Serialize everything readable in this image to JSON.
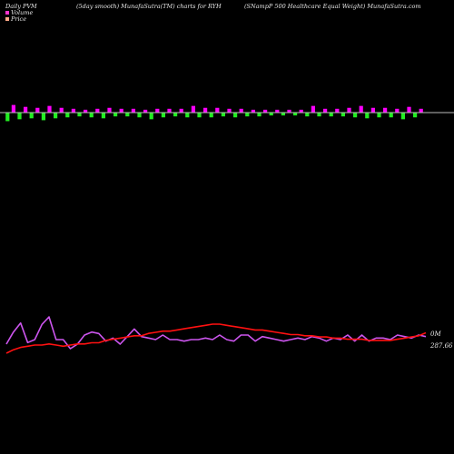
{
  "header": {
    "left": "Daily PVM",
    "middle": "(5day smooth) MunafaSutra(TM) charts for RYH",
    "right": "(SNampP 500  Healthcare   Equal Weight) MunafaSutra.com"
  },
  "legend": {
    "volume_label": "Volume",
    "price_label": "Price",
    "volume_color": "#ff33cc",
    "price_color": "#ffaa88"
  },
  "colors": {
    "background": "#000000",
    "up_bar": "#ff00ff",
    "down_bar": "#22ee22",
    "baseline": "#bbbbbb",
    "volume_line": "#cc55ee",
    "price_line": "#ff1111"
  },
  "chart_data": [
    {
      "type": "bar",
      "title": "",
      "xlabel": "",
      "ylabel": "",
      "series": [
        {
          "name": "",
          "values": [
            -9,
            8,
            -7,
            6,
            -6,
            5,
            -8,
            7,
            -6,
            5,
            -5,
            4,
            -4,
            3,
            -5,
            4,
            -6,
            5,
            -4,
            4,
            -4,
            4,
            -5,
            3,
            -7,
            4,
            -5,
            4,
            -4,
            4,
            -5,
            7,
            -5,
            5,
            -5,
            5,
            -4,
            4,
            -5,
            4,
            -4,
            3,
            -4,
            3,
            -3,
            3,
            -3,
            3,
            -3,
            3,
            -4,
            7,
            -4,
            4,
            -4,
            4,
            -4,
            5,
            -5,
            7,
            -6,
            5,
            -5,
            5,
            -5,
            4,
            -7,
            6,
            -5,
            4
          ]
        }
      ]
    },
    {
      "type": "line",
      "title": "",
      "xlabel": "",
      "ylabel": "",
      "annotations": [
        "0M",
        "287.66"
      ],
      "series": [
        {
          "name": "",
          "values": [
            3.2,
            4.0,
            4.6,
            3.3,
            3.5,
            4.5,
            5.0,
            3.5,
            3.5,
            2.9,
            3.2,
            3.8,
            4.0,
            3.9,
            3.4,
            3.6,
            3.2,
            3.7,
            4.2,
            3.7,
            3.6,
            3.5,
            3.8,
            3.5,
            3.5,
            3.4,
            3.5,
            3.5,
            3.6,
            3.5,
            3.8,
            3.5,
            3.4,
            3.8,
            3.8,
            3.4,
            3.7,
            3.6,
            3.5,
            3.4,
            3.5,
            3.6,
            3.5,
            3.7,
            3.6,
            3.4,
            3.6,
            3.5,
            3.8,
            3.4,
            3.8,
            3.4,
            3.6,
            3.6,
            3.5,
            3.8,
            3.7,
            3.6,
            3.8,
            3.7
          ]
        },
        {
          "name": "",
          "values": [
            285.9,
            286.2,
            286.4,
            286.5,
            286.6,
            286.6,
            286.7,
            286.6,
            286.5,
            286.6,
            286.7,
            286.7,
            286.8,
            286.8,
            287.0,
            287.1,
            287.2,
            287.3,
            287.4,
            287.4,
            287.6,
            287.7,
            287.8,
            287.8,
            287.9,
            288.0,
            288.1,
            288.2,
            288.3,
            288.4,
            288.4,
            288.3,
            288.2,
            288.1,
            288.0,
            287.9,
            287.9,
            287.8,
            287.7,
            287.6,
            287.5,
            287.5,
            287.4,
            287.4,
            287.3,
            287.3,
            287.2,
            287.2,
            287.1,
            287.1,
            287.1,
            287.0,
            287.0,
            287.0,
            287.0,
            287.1,
            287.2,
            287.3,
            287.4,
            287.66
          ]
        }
      ]
    }
  ]
}
